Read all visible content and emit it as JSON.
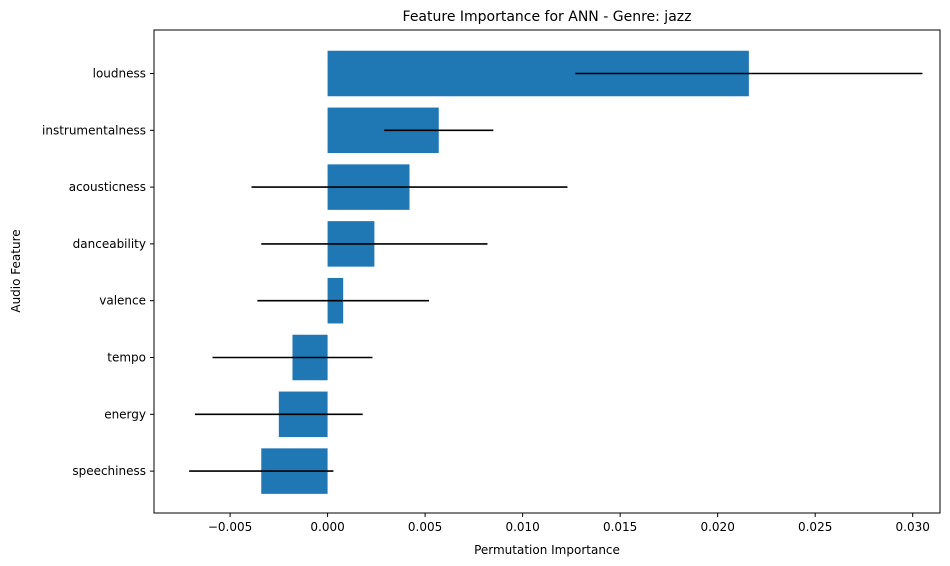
{
  "chart_data": {
    "type": "bar",
    "orientation": "horizontal",
    "title": "Feature Importance for ANN - Genre: jazz",
    "xlabel": "Permutation Importance",
    "ylabel": "Audio Feature",
    "categories": [
      "loudness",
      "instrumentalness",
      "acousticness",
      "danceability",
      "valence",
      "tempo",
      "energy",
      "speechiness"
    ],
    "values": [
      0.0216,
      0.0057,
      0.0042,
      0.0024,
      0.0008,
      -0.0018,
      -0.0025,
      -0.0034
    ],
    "errors": [
      0.0089,
      0.0028,
      0.0081,
      0.0058,
      0.0044,
      0.0041,
      0.0043,
      0.0037
    ],
    "xlim": [
      -0.0089,
      0.0314
    ],
    "xticks": [
      -0.005,
      0.0,
      0.005,
      0.01,
      0.015,
      0.02,
      0.025,
      0.03
    ],
    "xtick_labels": [
      "−0.005",
      "0.000",
      "0.005",
      "0.010",
      "0.015",
      "0.020",
      "0.025",
      "0.030"
    ],
    "bar_color": "#1f77b4",
    "error_color": "#000000",
    "grid": false
  }
}
